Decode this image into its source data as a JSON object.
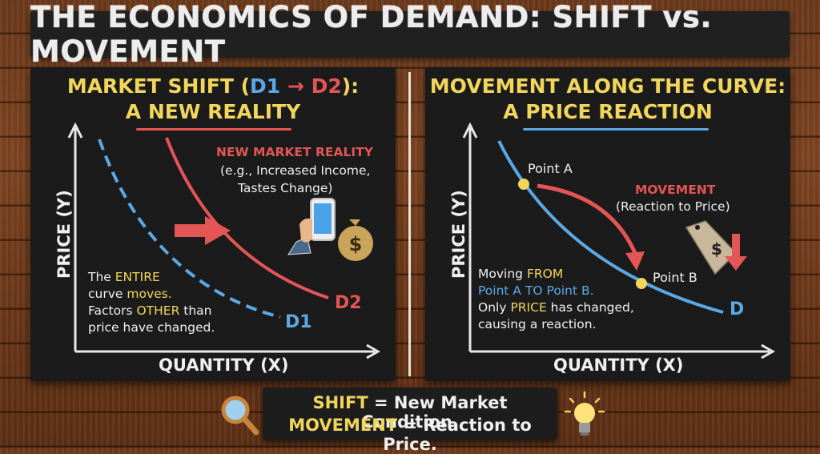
{
  "title": "THE ECONOMICS OF DEMAND: SHIFT vs. MOVEMENT",
  "left_panel": {
    "title_line1_a": "MARKET SHIFT (",
    "title_d1": "D1",
    "title_arrow": "→",
    "title_d2": "D2",
    "title_line1_b": "):",
    "title_line2": "A NEW REALITY",
    "new_reality_title": "NEW MARKET REALITY",
    "new_reality_line1": "(e.g., Increased Income,",
    "new_reality_line2": "Tastes Change)",
    "note_line1_a": "The ",
    "note_line1_b": "ENTIRE",
    "note_line2_a": "curve ",
    "note_line2_b": "moves.",
    "note_line3_a": "Factors ",
    "note_line3_b": "OTHER",
    "note_line3_c": " than",
    "note_line4": "price have changed.",
    "curve1_label": "D1",
    "curve2_label": "D2",
    "y_axis": "PRICE (Y)",
    "x_axis": "QUANTITY (X)",
    "icons": [
      "smartphone-icon",
      "money-bag-icon",
      "shift-arrow-icon"
    ]
  },
  "right_panel": {
    "title_line1": "MOVEMENT ALONG THE CURVE:",
    "title_line2": "A PRICE REACTION",
    "point_a": "Point A",
    "point_b": "Point B",
    "movement_title": "MOVEMENT",
    "movement_sub": "(Reaction to Price)",
    "note_line1_a": "Moving ",
    "note_line1_b": "FROM",
    "note_line2": "Point A TO Point B.",
    "note_line3_a": "Only ",
    "note_line3_b": "PRICE",
    "note_line3_c": " has changed,",
    "note_line4": "causing a reaction.",
    "curve_label": "D",
    "y_axis": "PRICE (Y)",
    "x_axis": "QUANTITY (X)",
    "icons": [
      "price-tag-icon",
      "down-arrow-icon"
    ]
  },
  "summary": {
    "line1_a": "SHIFT",
    "line1_b": " = New Market Condition.",
    "line2_a": "MOVEMENT",
    "line2_b": " = Reaction to Price.",
    "icons": [
      "magnifier-icon",
      "lightbulb-icon"
    ]
  },
  "colors": {
    "chalk_yellow": "#f2d65c",
    "chalk_blue": "#5aa9e6",
    "chalk_red": "#e45555",
    "chalk_white": "#f0f0f0",
    "board": "#1b1b1b"
  }
}
